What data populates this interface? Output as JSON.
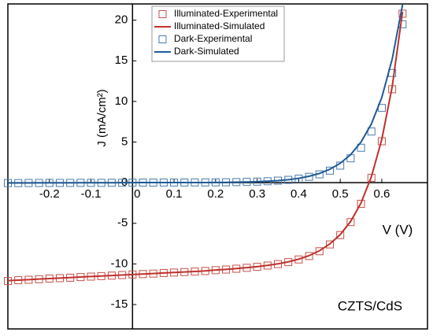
{
  "chart_data": {
    "type": "line",
    "x_label": "V (V)",
    "y_label": "J (mA/cm²)",
    "annotation": "CZTS/CdS",
    "xlim": [
      -0.3,
      0.71
    ],
    "ylim": [
      -18,
      22
    ],
    "xticks": [
      -0.2,
      -0.1,
      0,
      0.1,
      0.2,
      0.3,
      0.4,
      0.5,
      0.6
    ],
    "yticks": [
      -15,
      -10,
      -5,
      0,
      5,
      10,
      15,
      20
    ],
    "legend": "upper left",
    "x": [
      -0.3,
      -0.275,
      -0.25,
      -0.225,
      -0.2,
      -0.175,
      -0.15,
      -0.125,
      -0.1,
      -0.075,
      -0.05,
      -0.025,
      0,
      0.025,
      0.05,
      0.075,
      0.1,
      0.125,
      0.15,
      0.175,
      0.2,
      0.225,
      0.25,
      0.275,
      0.3,
      0.325,
      0.35,
      0.375,
      0.4,
      0.425,
      0.45,
      0.475,
      0.5,
      0.525,
      0.55,
      0.575,
      0.6,
      0.625,
      0.65
    ],
    "series": [
      {
        "name": "Illuminated-Experimental",
        "style": "markers",
        "color": "#c8504a",
        "values": [
          -12.1,
          -12.0,
          -11.95,
          -11.88,
          -11.8,
          -11.75,
          -11.7,
          -11.62,
          -11.56,
          -11.5,
          -11.44,
          -11.37,
          -11.3,
          -11.25,
          -11.19,
          -11.12,
          -11.06,
          -11.0,
          -10.94,
          -10.87,
          -10.77,
          -10.69,
          -10.59,
          -10.48,
          -10.36,
          -10.2,
          -10.02,
          -9.78,
          -9.45,
          -9.03,
          -8.44,
          -7.6,
          -6.45,
          -4.85,
          -2.6,
          0.6,
          5.1,
          11.5,
          20.8
        ]
      },
      {
        "name": "Illuminated-Simulated",
        "style": "line",
        "color": "#c0302b",
        "values": [
          -12.05,
          -11.99,
          -11.93,
          -11.86,
          -11.8,
          -11.74,
          -11.68,
          -11.61,
          -11.55,
          -11.49,
          -11.43,
          -11.36,
          -11.3,
          -11.24,
          -11.18,
          -11.11,
          -11.05,
          -10.99,
          -10.93,
          -10.86,
          -10.75,
          -10.67,
          -10.57,
          -10.46,
          -10.34,
          -10.18,
          -9.99,
          -9.74,
          -9.41,
          -8.98,
          -8.38,
          -7.54,
          -6.39,
          -4.77,
          -2.5,
          0.74,
          5.32,
          11.8,
          21.03
        ]
      },
      {
        "name": "Dark-Experimental",
        "style": "markers",
        "color": "#4a7bab",
        "values": [
          -0.05,
          -0.05,
          -0.04,
          -0.04,
          -0.03,
          -0.03,
          -0.03,
          -0.02,
          -0.02,
          -0.02,
          -0.01,
          -0.01,
          0,
          0.01,
          0.01,
          0.02,
          0.02,
          0.02,
          0.03,
          0.03,
          0.04,
          0.05,
          0.07,
          0.1,
          0.13,
          0.18,
          0.25,
          0.35,
          0.5,
          0.72,
          1.03,
          1.48,
          2.1,
          3.0,
          4.3,
          6.3,
          9.2,
          13.5,
          19.5
        ]
      },
      {
        "name": "Dark-Simulated",
        "style": "line",
        "color": "#1f5a96",
        "values": [
          -0.03,
          -0.03,
          -0.03,
          -0.02,
          -0.02,
          -0.02,
          -0.02,
          -0.01,
          -0.01,
          -0.01,
          -0.01,
          0,
          0,
          0.01,
          0.01,
          0.01,
          0.02,
          0.02,
          0.02,
          0.02,
          0.03,
          0.04,
          0.06,
          0.09,
          0.12,
          0.18,
          0.26,
          0.37,
          0.54,
          0.79,
          1.14,
          1.65,
          2.39,
          3.45,
          5,
          7.24,
          10.48,
          15.2,
          21.9
        ]
      }
    ]
  }
}
